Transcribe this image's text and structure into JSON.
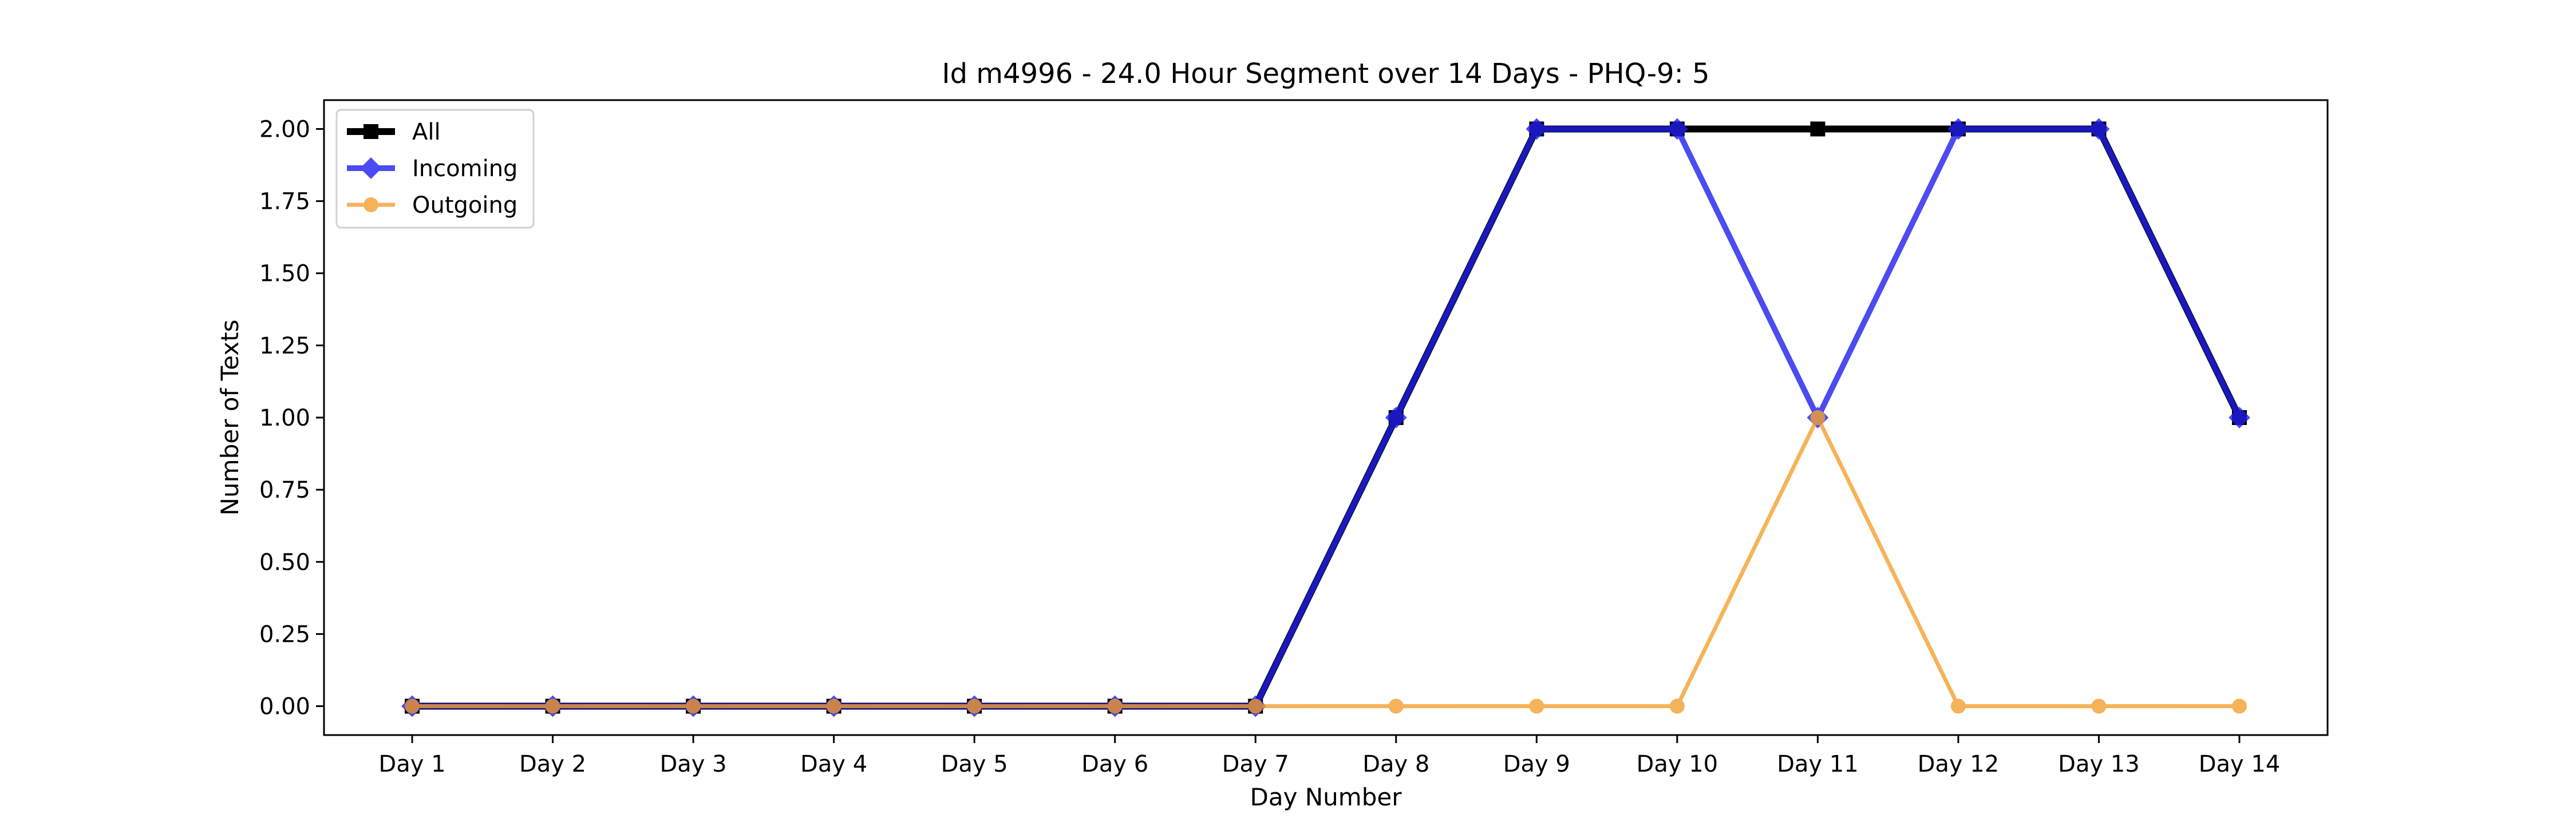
{
  "chart_data": {
    "type": "line",
    "title": "Id m4996 - 24.0 Hour Segment over 14 Days - PHQ-9: 5",
    "xlabel": "Day Number",
    "ylabel": "Number of Texts",
    "categories": [
      "Day 1",
      "Day 2",
      "Day 3",
      "Day 4",
      "Day 5",
      "Day 6",
      "Day 7",
      "Day 8",
      "Day 9",
      "Day 10",
      "Day 11",
      "Day 12",
      "Day 13",
      "Day 14"
    ],
    "ylim": [
      -0.1,
      2.1
    ],
    "yticks": [
      0.0,
      0.25,
      0.5,
      0.75,
      1.0,
      1.25,
      1.5,
      1.75,
      2.0
    ],
    "ytick_labels": [
      "0.00",
      "0.25",
      "0.50",
      "0.75",
      "1.00",
      "1.25",
      "1.50",
      "1.75",
      "2.00"
    ],
    "grid": false,
    "legend_position": "top-left",
    "series": [
      {
        "name": "All",
        "color": "#000000",
        "marker": "square",
        "values": [
          0,
          0,
          0,
          0,
          0,
          0,
          0,
          1,
          2,
          2,
          2,
          2,
          2,
          1
        ]
      },
      {
        "name": "Incoming",
        "color": "#1f1fee",
        "marker": "diamond",
        "values": [
          0,
          0,
          0,
          0,
          0,
          0,
          0,
          1,
          2,
          2,
          1,
          2,
          2,
          1
        ]
      },
      {
        "name": "Outgoing",
        "color": "#f5a030",
        "marker": "circle",
        "values": [
          0,
          0,
          0,
          0,
          0,
          0,
          0,
          0,
          0,
          0,
          1,
          0,
          0,
          0
        ]
      }
    ]
  }
}
